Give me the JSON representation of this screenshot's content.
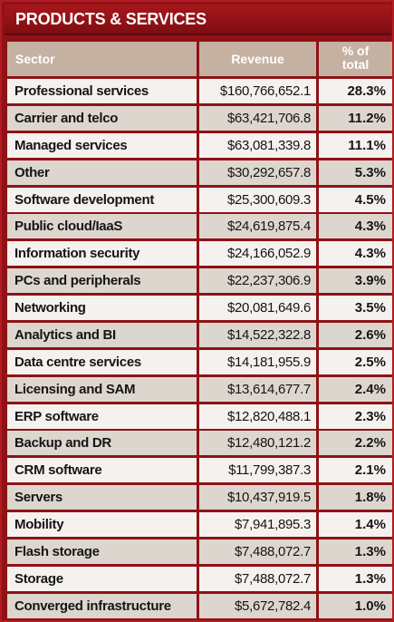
{
  "title": "PRODUCTS & SERVICES",
  "colors": {
    "panel": "#8e1216",
    "header": "#c5b1a2",
    "row_light": "#f4f1ee",
    "row_dark": "#ddd6cf"
  },
  "chart_data": {
    "type": "table",
    "title": "PRODUCTS & SERVICES",
    "columns": [
      "Sector",
      "Revenue",
      "% of total"
    ],
    "rows": [
      {
        "sector": "Professional services",
        "revenue": "$160,766,652.1",
        "pct": "28.3%"
      },
      {
        "sector": "Carrier and telco",
        "revenue": "$63,421,706.8",
        "pct": "11.2%"
      },
      {
        "sector": "Managed services",
        "revenue": "$63,081,339.8",
        "pct": "11.1%"
      },
      {
        "sector": "Other",
        "revenue": "$30,292,657.8",
        "pct": "5.3%"
      },
      {
        "sector": "Software development",
        "revenue": "$25,300,609.3",
        "pct": "4.5%"
      },
      {
        "sector": "Public cloud/IaaS",
        "revenue": "$24,619,875.4",
        "pct": "4.3%"
      },
      {
        "sector": "Information security",
        "revenue": "$24,166,052.9",
        "pct": "4.3%"
      },
      {
        "sector": "PCs and peripherals",
        "revenue": "$22,237,306.9",
        "pct": "3.9%"
      },
      {
        "sector": "Networking",
        "revenue": "$20,081,649.6",
        "pct": "3.5%"
      },
      {
        "sector": "Analytics and BI",
        "revenue": "$14,522,322.8",
        "pct": "2.6%"
      },
      {
        "sector": "Data centre services",
        "revenue": "$14,181,955.9",
        "pct": "2.5%"
      },
      {
        "sector": "Licensing and SAM",
        "revenue": "$13,614,677.7",
        "pct": "2.4%"
      },
      {
        "sector": "ERP software",
        "revenue": "$12,820,488.1",
        "pct": "2.3%"
      },
      {
        "sector": "Backup and DR",
        "revenue": "$12,480,121.2",
        "pct": "2.2%"
      },
      {
        "sector": "CRM software",
        "revenue": "$11,799,387.3",
        "pct": "2.1%"
      },
      {
        "sector": "Servers",
        "revenue": "$10,437,919.5",
        "pct": "1.8%"
      },
      {
        "sector": "Mobility",
        "revenue": "$7,941,895.3",
        "pct": "1.4%"
      },
      {
        "sector": "Flash storage",
        "revenue": "$7,488,072.7",
        "pct": "1.3%"
      },
      {
        "sector": "Storage",
        "revenue": "$7,488,072.7",
        "pct": "1.3%"
      },
      {
        "sector": "Converged infrastructure",
        "revenue": "$5,672,782.4",
        "pct": "1.0%"
      }
    ]
  }
}
